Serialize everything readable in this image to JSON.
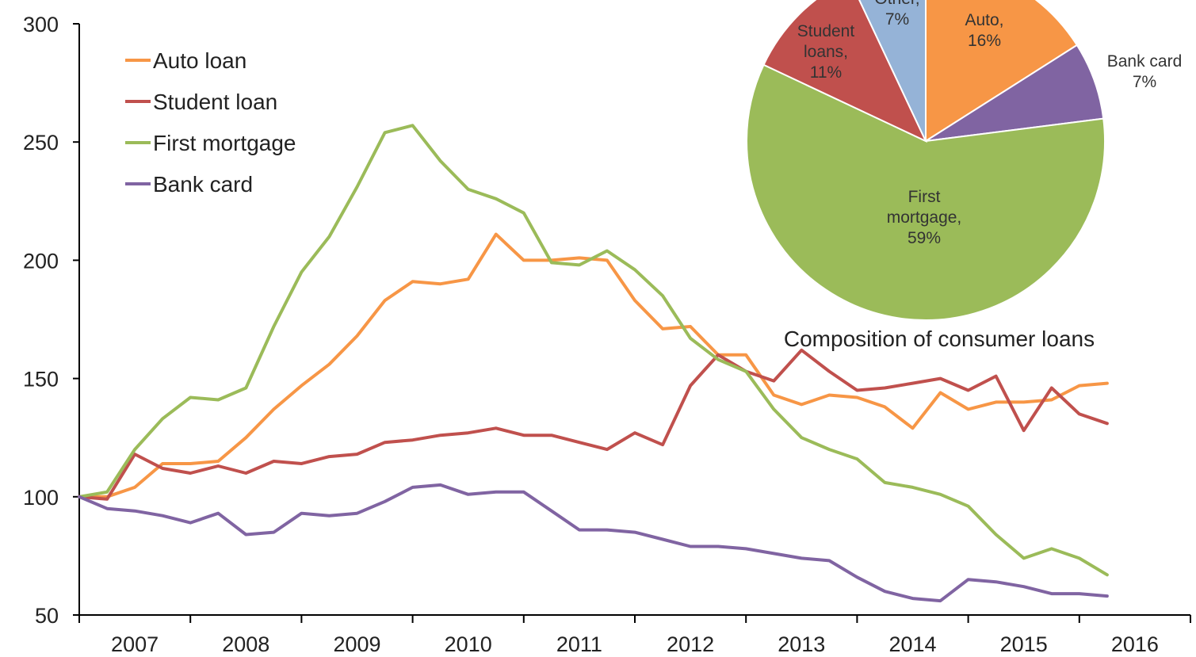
{
  "chart_data": [
    {
      "type": "line",
      "title": "",
      "xlabel": "",
      "ylabel": "",
      "ylim": [
        50,
        300
      ],
      "yticks": [
        300,
        250,
        200,
        150,
        100,
        50
      ],
      "x_tick_labels": [
        "2007",
        "2008",
        "2009",
        "2010",
        "2011",
        "2012",
        "2013",
        "2014",
        "2015",
        "2016"
      ],
      "x_range": [
        2006.5,
        2016.5
      ],
      "grid": false,
      "legend_position": "top-left",
      "series": [
        {
          "name": "Auto loan",
          "color": "#F79646",
          "x": [
            2006.5,
            2006.75,
            2007.0,
            2007.25,
            2007.5,
            2007.75,
            2008.0,
            2008.25,
            2008.5,
            2008.75,
            2009.0,
            2009.25,
            2009.5,
            2009.75,
            2010.0,
            2010.25,
            2010.5,
            2010.75,
            2011.0,
            2011.25,
            2011.5,
            2011.75,
            2012.0,
            2012.25,
            2012.5,
            2012.75,
            2013.0,
            2013.25,
            2013.5,
            2013.75,
            2014.0,
            2014.25,
            2014.5,
            2014.75,
            2015.0,
            2015.25,
            2015.5,
            2015.75
          ],
          "y": [
            100,
            100,
            104,
            114,
            114,
            115,
            125,
            137,
            147,
            156,
            168,
            183,
            191,
            190,
            192,
            211,
            200,
            200,
            201,
            200,
            183,
            171,
            172,
            160,
            160,
            143,
            139,
            143,
            142,
            138,
            129,
            144,
            137,
            140,
            140,
            141,
            147,
            148
          ]
        },
        {
          "name": "Student loan",
          "color": "#C0504D",
          "x": [
            2006.5,
            2006.75,
            2007.0,
            2007.25,
            2007.5,
            2007.75,
            2008.0,
            2008.25,
            2008.5,
            2008.75,
            2009.0,
            2009.25,
            2009.5,
            2009.75,
            2010.0,
            2010.25,
            2010.5,
            2010.75,
            2011.0,
            2011.25,
            2011.5,
            2011.75,
            2012.0,
            2012.25,
            2012.5,
            2012.75,
            2013.0,
            2013.25,
            2013.5,
            2013.75,
            2014.0,
            2014.25,
            2014.5,
            2014.75,
            2015.0,
            2015.25,
            2015.5,
            2015.75
          ],
          "y": [
            100,
            99,
            118,
            112,
            110,
            113,
            110,
            115,
            114,
            117,
            118,
            123,
            124,
            126,
            127,
            129,
            126,
            126,
            123,
            120,
            127,
            122,
            147,
            160,
            153,
            149,
            162,
            153,
            145,
            146,
            148,
            150,
            145,
            151,
            128,
            146,
            135,
            131
          ]
        },
        {
          "name": "First mortgage",
          "color": "#9BBB59",
          "x": [
            2006.5,
            2006.75,
            2007.0,
            2007.25,
            2007.5,
            2007.75,
            2008.0,
            2008.25,
            2008.5,
            2008.75,
            2009.0,
            2009.25,
            2009.5,
            2009.75,
            2010.0,
            2010.25,
            2010.5,
            2010.75,
            2011.0,
            2011.25,
            2011.5,
            2011.75,
            2012.0,
            2012.25,
            2012.5,
            2012.75,
            2013.0,
            2013.25,
            2013.5,
            2013.75,
            2014.0,
            2014.25,
            2014.5,
            2014.75,
            2015.0,
            2015.25,
            2015.5,
            2015.75
          ],
          "y": [
            100,
            102,
            120,
            133,
            142,
            141,
            146,
            172,
            195,
            210,
            231,
            254,
            257,
            242,
            230,
            226,
            220,
            199,
            198,
            204,
            196,
            185,
            167,
            158,
            153,
            137,
            125,
            120,
            116,
            106,
            104,
            101,
            96,
            84,
            74,
            78,
            74,
            67
          ]
        },
        {
          "name": "Bank card",
          "color": "#8064A2",
          "x": [
            2006.5,
            2006.75,
            2007.0,
            2007.25,
            2007.5,
            2007.75,
            2008.0,
            2008.25,
            2008.5,
            2008.75,
            2009.0,
            2009.25,
            2009.5,
            2009.75,
            2010.0,
            2010.25,
            2010.5,
            2010.75,
            2011.0,
            2011.25,
            2011.5,
            2011.75,
            2012.0,
            2012.25,
            2012.5,
            2012.75,
            2013.0,
            2013.25,
            2013.5,
            2013.75,
            2014.0,
            2014.25,
            2014.5,
            2014.75,
            2015.0,
            2015.25,
            2015.5,
            2015.75
          ],
          "y": [
            100,
            95,
            94,
            92,
            89,
            93,
            84,
            85,
            93,
            92,
            93,
            98,
            104,
            105,
            101,
            102,
            102,
            94,
            86,
            86,
            85,
            82,
            79,
            79,
            78,
            76,
            74,
            73,
            66,
            60,
            57,
            56,
            65,
            64,
            62,
            59,
            59,
            58
          ]
        }
      ]
    },
    {
      "type": "pie",
      "title": "Composition of consumer loans",
      "slices": [
        {
          "label": "Auto,",
          "value": 16,
          "value_label": "16%",
          "color": "#F79646"
        },
        {
          "label": "Bank card",
          "value": 7,
          "value_label": "7%",
          "color": "#8064A2"
        },
        {
          "label": "First mortgage,",
          "value": 59,
          "value_label": "59%",
          "color": "#9BBB59"
        },
        {
          "label": "Student loans,",
          "value": 11,
          "value_label": "11%",
          "color": "#C0504D"
        },
        {
          "label": "Other,",
          "value": 7,
          "value_label": "7%",
          "color": "#95B3D7"
        }
      ]
    }
  ]
}
